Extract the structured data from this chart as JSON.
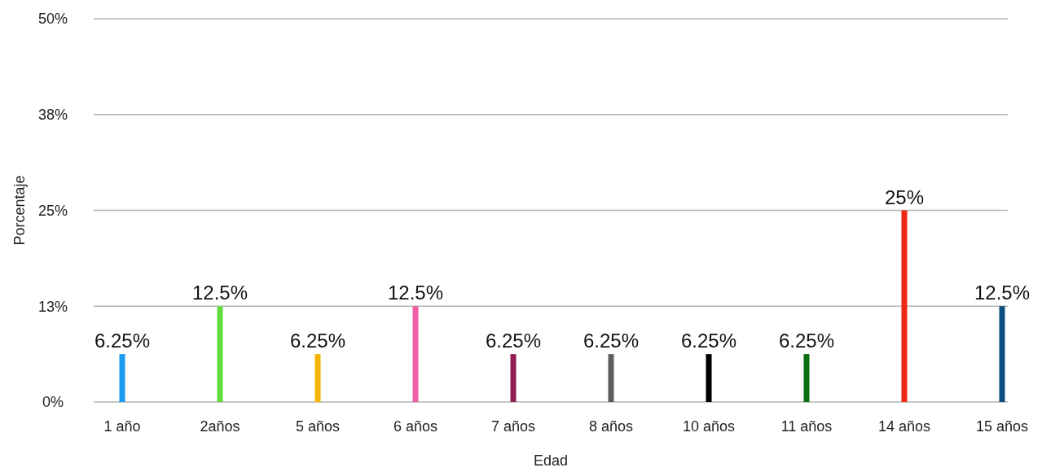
{
  "chart_data": {
    "type": "bar",
    "xlabel": "Edad",
    "ylabel": "Porcentaje",
    "categories": [
      "1 año",
      "2años",
      "5 años",
      "6 años",
      "7 años",
      "8 años",
      "10 años",
      "11 años",
      "14 años",
      "15 años"
    ],
    "values": [
      6.25,
      12.5,
      6.25,
      12.5,
      6.25,
      6.25,
      6.25,
      6.25,
      25,
      12.5
    ],
    "colors": [
      "#1a9af0",
      "#5fdc3c",
      "#f5b400",
      "#ef5fa7",
      "#941c55",
      "#5e5e5e",
      "#000000",
      "#0a6e12",
      "#ee2614",
      "#0b4f80"
    ],
    "value_labels": [
      "6.25%",
      "12.5%",
      "6.25%",
      "12.5%",
      "6.25%",
      "6.25%",
      "6.25%",
      "6.25%",
      "25%",
      "12.5%"
    ],
    "ylim": [
      0,
      50
    ],
    "yticks": [
      {
        "value": 0,
        "label": "0%"
      },
      {
        "value": 12.5,
        "label": "13%"
      },
      {
        "value": 25,
        "label": "25%"
      },
      {
        "value": 37.5,
        "label": "38%"
      },
      {
        "value": 50,
        "label": "50%"
      }
    ],
    "grid": "y"
  }
}
